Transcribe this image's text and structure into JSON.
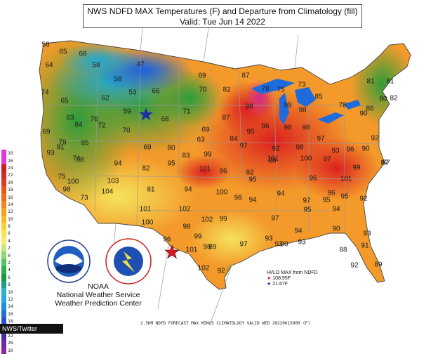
{
  "header": {
    "title_line1": "NWS NDFD MAX Temperatures (F) and Departure from Climatology (fill)",
    "title_line2": "Valid: Tue Jun 14 2022"
  },
  "legend": {
    "labels": [
      "10",
      "26",
      "24",
      "22",
      "20",
      "18",
      "16",
      "14",
      "12",
      "10",
      "8",
      "6",
      "4",
      "2",
      "0",
      "2",
      "4",
      "6",
      "8",
      "10",
      "12",
      "14",
      "16",
      "18",
      "20",
      "22",
      "26",
      "10"
    ],
    "colors": [
      "#e03bd8",
      "#e03bd8",
      "#c81e1e",
      "#d62a2a",
      "#e03a26",
      "#ea5322",
      "#f06a1e",
      "#f4851c",
      "#f79f22",
      "#f9b72b",
      "#fbcf3b",
      "#fde157",
      "#f5ec76",
      "#c9e87a",
      "#8ed86b",
      "#4fc55a",
      "#2fae4a",
      "#1f963f",
      "#1e9a8a",
      "#2bb4c8",
      "#27a7e0",
      "#1f8fe0",
      "#1e6fd8",
      "#2652c7",
      "#3338b4",
      "#4b2aa6",
      "#6a2aa0",
      "#8a2a98"
    ]
  },
  "stars": {
    "high_color": "#d71a20",
    "low_color": "#1e2fa0"
  },
  "hilo": {
    "title": "HI/LO MAX from NDFD",
    "hi_value": "108.95F",
    "lo_value": "21.67F"
  },
  "footer": {
    "caption": "2.5KM NDFD FORECAST MAX MINUS CLIMATOLOGY VALID WED 20220615000 (F)",
    "credit": "NWS/Twitter",
    "agency_line1": "NOAA",
    "agency_line2": "National Weather Service",
    "agency_line3": "Weather Prediction Center",
    "noaa_logo_text": "NOAA",
    "nws_logo_text": "NATIONAL WEATHER SERVICE"
  },
  "city_temps": [
    {
      "t": "58"
    },
    {
      "t": "65"
    },
    {
      "t": "68"
    },
    {
      "t": "64"
    },
    {
      "t": "58"
    },
    {
      "t": "47"
    },
    {
      "t": "58"
    },
    {
      "t": "69"
    },
    {
      "t": "87"
    },
    {
      "t": "78"
    },
    {
      "t": "75"
    },
    {
      "t": "73"
    },
    {
      "t": "74"
    },
    {
      "t": "65"
    },
    {
      "t": "62"
    },
    {
      "t": "53"
    },
    {
      "t": "66"
    },
    {
      "t": "70"
    },
    {
      "t": "82"
    },
    {
      "t": "98"
    },
    {
      "t": "85"
    },
    {
      "t": "81"
    },
    {
      "t": "81"
    },
    {
      "t": "63"
    },
    {
      "t": "59"
    },
    {
      "t": "71"
    },
    {
      "t": "68"
    },
    {
      "t": "76"
    },
    {
      "t": "87"
    },
    {
      "t": "96"
    },
    {
      "t": "98"
    },
    {
      "t": "98"
    },
    {
      "t": "78"
    },
    {
      "t": "80"
    },
    {
      "t": "86"
    },
    {
      "t": "84"
    },
    {
      "t": "72"
    },
    {
      "t": "70"
    },
    {
      "t": "69"
    },
    {
      "t": "63"
    },
    {
      "t": "84"
    },
    {
      "t": "99"
    },
    {
      "t": "92"
    },
    {
      "t": "98"
    },
    {
      "t": "90"
    },
    {
      "t": "82"
    },
    {
      "t": "69"
    },
    {
      "t": "91"
    },
    {
      "t": "85"
    },
    {
      "t": "69"
    },
    {
      "t": "80"
    },
    {
      "t": "83"
    },
    {
      "t": "99"
    },
    {
      "t": "95"
    },
    {
      "t": "98"
    },
    {
      "t": "97"
    },
    {
      "t": "93"
    },
    {
      "t": "90"
    },
    {
      "t": "87"
    },
    {
      "t": "93"
    },
    {
      "t": "79"
    },
    {
      "t": "74"
    },
    {
      "t": "94"
    },
    {
      "t": "95"
    },
    {
      "t": "97"
    },
    {
      "t": "101"
    },
    {
      "t": "100"
    },
    {
      "t": "97"
    },
    {
      "t": "96"
    },
    {
      "t": "92"
    },
    {
      "t": "87"
    },
    {
      "t": "75"
    },
    {
      "t": "88"
    },
    {
      "t": "82"
    },
    {
      "t": "101"
    },
    {
      "t": "96"
    },
    {
      "t": "92"
    },
    {
      "t": "88"
    },
    {
      "t": "96"
    },
    {
      "t": "101"
    },
    {
      "t": "99"
    },
    {
      "t": "100"
    },
    {
      "t": "103"
    },
    {
      "t": "81"
    },
    {
      "t": "94"
    },
    {
      "t": "100"
    },
    {
      "t": "95"
    },
    {
      "t": "94"
    },
    {
      "t": "97"
    },
    {
      "t": "96"
    },
    {
      "t": "98"
    },
    {
      "t": "73"
    },
    {
      "t": "104"
    },
    {
      "t": "102"
    },
    {
      "t": "98"
    },
    {
      "t": "94"
    },
    {
      "t": "95"
    },
    {
      "t": "95"
    },
    {
      "t": "101"
    },
    {
      "t": "102"
    },
    {
      "t": "99"
    },
    {
      "t": "97"
    },
    {
      "t": "95"
    },
    {
      "t": "94"
    },
    {
      "t": "92"
    },
    {
      "t": "100"
    },
    {
      "t": "98"
    },
    {
      "t": "93"
    },
    {
      "t": "94"
    },
    {
      "t": "90"
    },
    {
      "t": "96"
    },
    {
      "t": "99"
    },
    {
      "t": "98"
    },
    {
      "t": "97"
    },
    {
      "t": "93"
    },
    {
      "t": "93"
    },
    {
      "t": "93"
    },
    {
      "t": "101"
    },
    {
      "t": "89"
    },
    {
      "t": "90"
    },
    {
      "t": "88"
    },
    {
      "t": "102"
    },
    {
      "t": "92"
    },
    {
      "t": "91"
    },
    {
      "t": "92"
    },
    {
      "t": "89"
    }
  ]
}
